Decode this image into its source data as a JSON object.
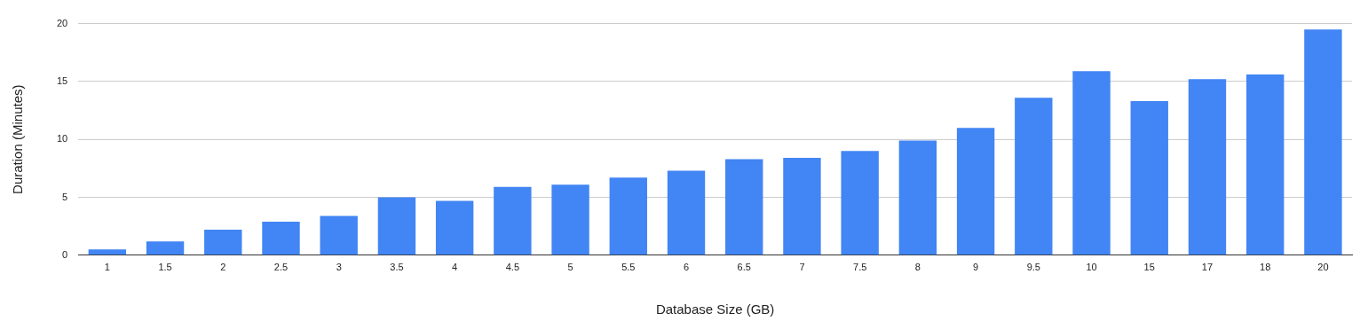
{
  "chart_data": {
    "type": "bar",
    "xlabel": "Database Size (GB)",
    "ylabel": "Duration (Minutes)",
    "categories": [
      "1",
      "1.5",
      "2",
      "2.5",
      "3",
      "3.5",
      "4",
      "4.5",
      "5",
      "5.5",
      "6",
      "6.5",
      "7",
      "7.5",
      "8",
      "9",
      "9.5",
      "10",
      "15",
      "17",
      "18",
      "20"
    ],
    "values": [
      0.5,
      1.2,
      2.2,
      2.9,
      3.4,
      5.0,
      4.7,
      5.9,
      6.1,
      6.7,
      7.3,
      8.3,
      8.4,
      9.0,
      9.9,
      11.0,
      13.6,
      15.9,
      13.3,
      15.2,
      15.6,
      19.5
    ],
    "color": "#4285f4",
    "ylim": [
      0,
      20
    ],
    "yticks": [
      0,
      5,
      10,
      15,
      20
    ],
    "grid": "y",
    "legend": false
  }
}
